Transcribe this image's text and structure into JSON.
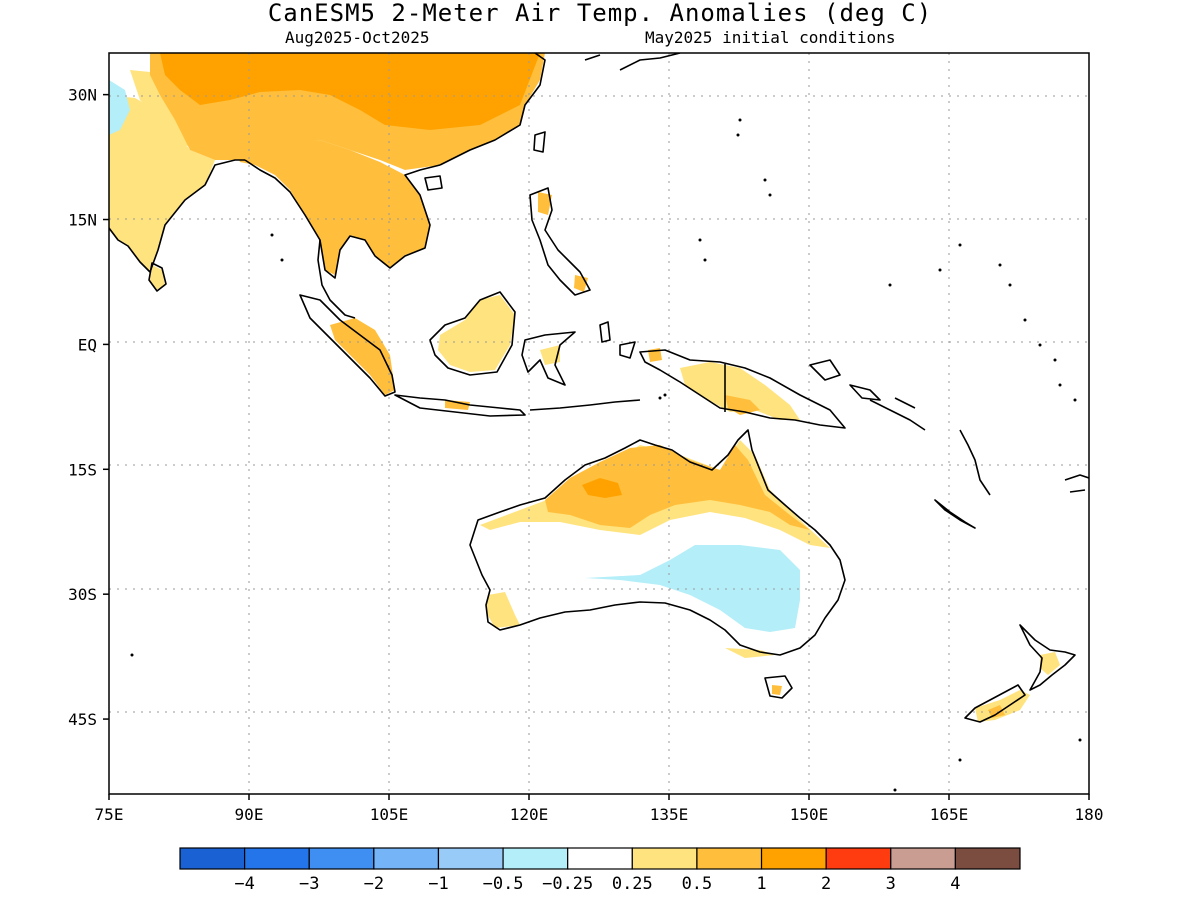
{
  "title": "CanESM5 2-Meter Air Temp. Anomalies (deg C)",
  "subtitle_left": "Aug2025-Oct2025",
  "subtitle_right": "May2025 initial conditions",
  "map": {
    "lon_range": [
      75,
      180
    ],
    "lat_range": [
      -54,
      35
    ],
    "x_ticks": [
      {
        "value": 75,
        "label": "75E"
      },
      {
        "value": 90,
        "label": "90E"
      },
      {
        "value": 105,
        "label": "105E"
      },
      {
        "value": 120,
        "label": "120E"
      },
      {
        "value": 135,
        "label": "135E"
      },
      {
        "value": 150,
        "label": "150E"
      },
      {
        "value": 165,
        "label": "165E"
      },
      {
        "value": 180,
        "label": "180"
      }
    ],
    "y_ticks": [
      {
        "value": 30,
        "label": "30N"
      },
      {
        "value": 15,
        "label": "15N"
      },
      {
        "value": 0,
        "label": "EQ"
      },
      {
        "value": -15,
        "label": "15S"
      },
      {
        "value": -30,
        "label": "30S"
      },
      {
        "value": -45,
        "label": "45S"
      }
    ],
    "grid": true
  },
  "colorbar": {
    "colors": [
      "#1a62d4",
      "#2575ea",
      "#3f8ef1",
      "#75b4f6",
      "#99cbf8",
      "#b4eef8",
      "#ffffff",
      "#ffe37e",
      "#ffbf3c",
      "#ffa200",
      "#ff3c10",
      "#c99d92",
      "#7a4d40"
    ],
    "boundaries": [
      "−4",
      "−3",
      "−2",
      "−1",
      "−0.5",
      "−0.25",
      "0.25",
      "0.5",
      "1",
      "2",
      "3",
      "4"
    ]
  },
  "colors": {
    "weak_warm": "#ffe37e",
    "moderate_warm": "#ffbf3c",
    "strong_warm": "#ffa200",
    "weak_cool": "#b4eef8"
  }
}
